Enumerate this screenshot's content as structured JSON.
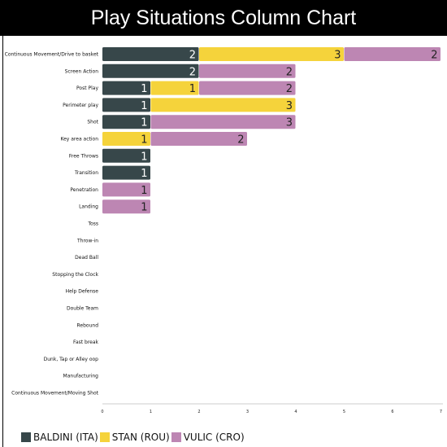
{
  "chart_data": {
    "type": "bar",
    "orientation": "horizontal",
    "stacked": true,
    "title": "Play Situations Column Chart",
    "categories": [
      "Continuous Movement/Drive to basket",
      "Screen Action",
      "Post Play",
      "Perimeter play",
      "Shot",
      "Key area action",
      "Free Throws",
      "Transition",
      "Penetration",
      "Landing",
      "Toss",
      "Throw-in",
      "Dead Ball",
      "Stopping the Clock",
      "Help Defense",
      "Double Team",
      "Rebound",
      "Fast break",
      "Dunk, Tap or Alley oop",
      "Manufacturing",
      "Continuous Movement/Moving Shot"
    ],
    "series": [
      {
        "name": "BALDINI (ITA)",
        "color": "#37474a",
        "values": [
          2,
          2,
          1,
          1,
          1,
          0,
          1,
          1,
          0,
          0,
          0,
          0,
          0,
          0,
          0,
          0,
          0,
          0,
          0,
          0,
          0
        ]
      },
      {
        "name": "STAN (ROU)",
        "color": "#f5d33b",
        "values": [
          3,
          0,
          1,
          3,
          0,
          1,
          0,
          0,
          0,
          0,
          0,
          0,
          0,
          0,
          0,
          0,
          0,
          0,
          0,
          0,
          0
        ]
      },
      {
        "name": "VULIC (CRO)",
        "color": "#bd86b3",
        "values": [
          2,
          2,
          2,
          0,
          3,
          2,
          0,
          0,
          1,
          1,
          0,
          0,
          0,
          0,
          0,
          0,
          0,
          0,
          0,
          0,
          0
        ]
      }
    ],
    "xlim": [
      0,
      7
    ],
    "xticks": [
      "0",
      "1",
      "2",
      "3",
      "4",
      "5",
      "6",
      "7"
    ],
    "legend": "bottom-left"
  }
}
